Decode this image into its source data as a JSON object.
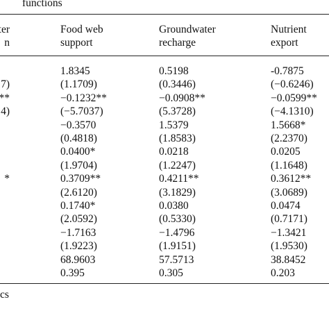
{
  "caption_fragment": "functions",
  "headers": {
    "col0": [
      "ater",
      "n"
    ],
    "col1": [
      "Food web",
      "support"
    ],
    "col2": [
      "Groundwater",
      "recharge"
    ],
    "col3": [
      "Nutrient",
      "export"
    ]
  },
  "rows": [
    {
      "c0": "",
      "c1": "1.8345",
      "c2": "0.5198",
      "c3": "-0.7875"
    },
    {
      "c0": "7)",
      "c1": "(1.1709)",
      "c2": "(0.3446)",
      "c3": "(−0.6246)"
    },
    {
      "c0": "**",
      "c1": "−0.1232**",
      "c2": "−0.0908**",
      "c3": "−0.0599**"
    },
    {
      "c0": "4)",
      "c1": "(−5.7037)",
      "c2": "(5.3728)",
      "c3": "(−4.1310)"
    },
    {
      "c0": "",
      "c1": "−0.3570",
      "c2": "1.5379",
      "c3": "1.5668*"
    },
    {
      "c0": "",
      "c1": "(0.4818)",
      "c2": "(1.8583)",
      "c3": "(2.2370)"
    },
    {
      "c0": "",
      "c1": "0.0400*",
      "c2": "0.0218",
      "c3": "0.0205"
    },
    {
      "c0": "",
      "c1": "(1.9704)",
      "c2": "(1.2247)",
      "c3": "(1.1648)"
    },
    {
      "c0": "*",
      "c1": "0.3709**",
      "c2": "0.4211**",
      "c3": "0.3612**"
    },
    {
      "c0": "",
      "c1": "(2.6120)",
      "c2": "(3.1829)",
      "c3": "(3.0689)"
    },
    {
      "c0": "",
      "c1": "0.1740*",
      "c2": "0.0380",
      "c3": "0.0474"
    },
    {
      "c0": "",
      "c1": "(2.0592)",
      "c2": "(0.5330)",
      "c3": "(0.7171)"
    },
    {
      "c0": "",
      "c1": "−1.7163",
      "c2": "−1.4796",
      "c3": "−1.3421"
    },
    {
      "c0": "",
      "c1": "(1.9223)",
      "c2": "(1.9151)",
      "c3": "(1.9530)"
    },
    {
      "c0": "",
      "c1": "68.9603",
      "c2": "57.5713",
      "c3": "38.8452"
    },
    {
      "c0": "",
      "c1": "0.395",
      "c2": "0.305",
      "c3": "0.203"
    }
  ],
  "footer_fragment": "cs"
}
